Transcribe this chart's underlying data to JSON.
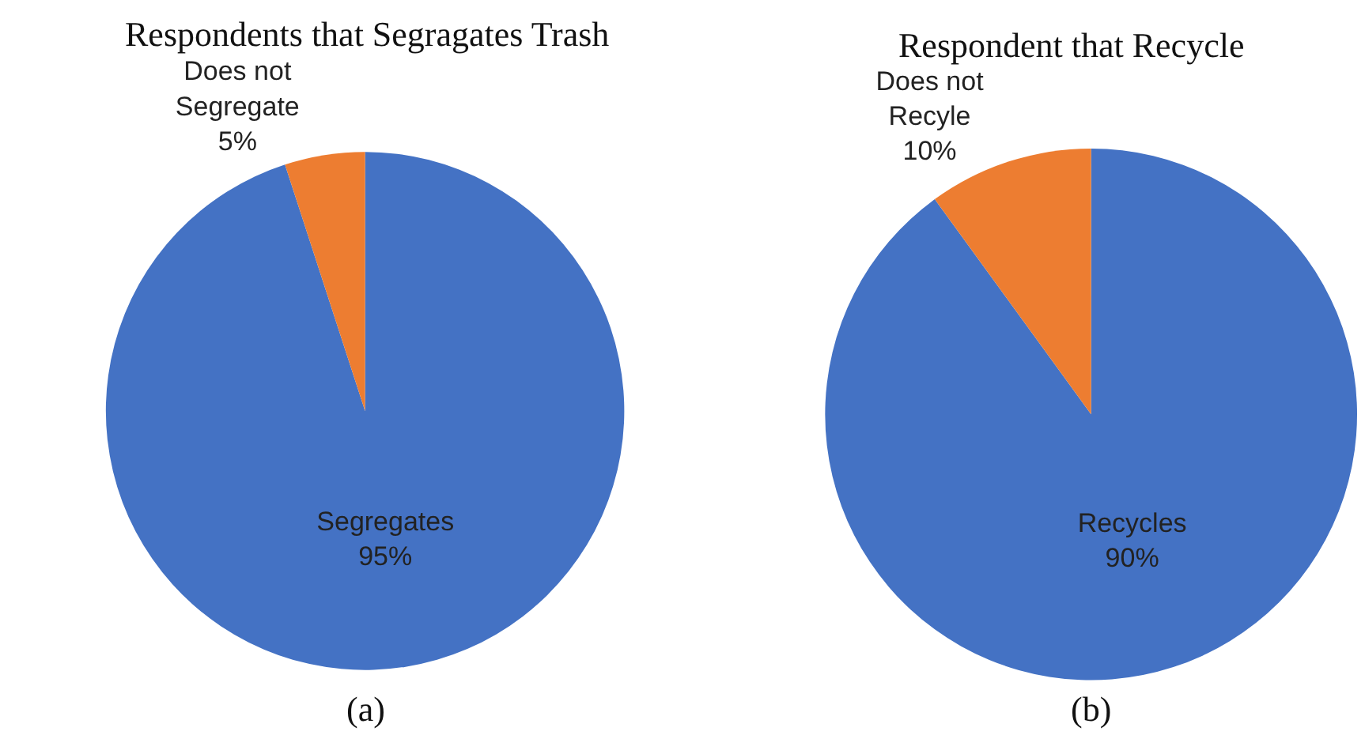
{
  "chart_data": [
    {
      "type": "pie",
      "title": "Respondents that Segragates Trash",
      "categories": [
        "Segregates",
        "Does not Segregate"
      ],
      "values": [
        95,
        5
      ],
      "value_labels": [
        "95%",
        "5%"
      ],
      "colors": [
        "#4472c4",
        "#ed7d31"
      ],
      "annotations": [
        "(a)"
      ]
    },
    {
      "type": "pie",
      "title": "Respondent that Recycle",
      "categories": [
        "Recycles",
        "Does not Recyle"
      ],
      "values": [
        90,
        10
      ],
      "value_labels": [
        "90%",
        "10%"
      ],
      "colors": [
        "#4472c4",
        "#ed7d31"
      ],
      "annotations": [
        "(b)"
      ]
    }
  ]
}
